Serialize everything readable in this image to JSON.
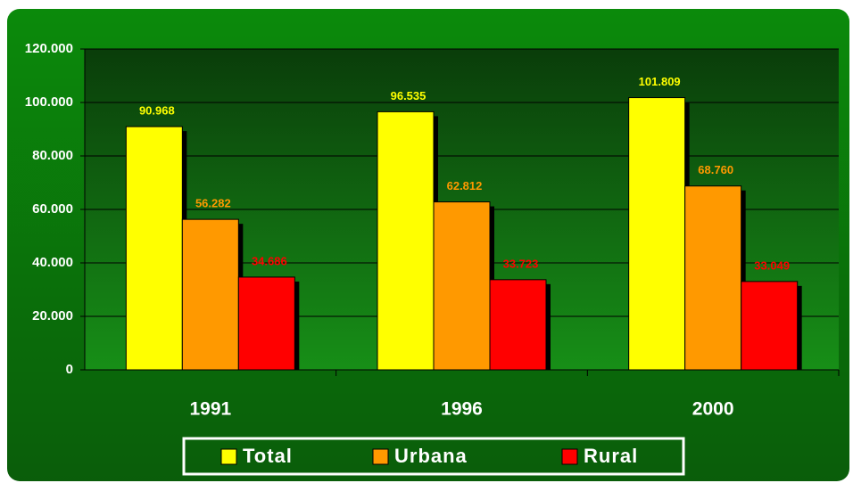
{
  "chart_data": {
    "type": "bar",
    "categories": [
      "1991",
      "1996",
      "2000"
    ],
    "series": [
      {
        "name": "Total",
        "color": "#ffff00",
        "values": [
          90968,
          96535,
          101809
        ],
        "value_labels": [
          "90.968",
          "96.535",
          "101.809"
        ]
      },
      {
        "name": "Urbana",
        "color": "#ff9900",
        "values": [
          56282,
          62812,
          68760
        ],
        "value_labels": [
          "56.282",
          "62.812",
          "68.760"
        ]
      },
      {
        "name": "Rural",
        "color": "#ff0000",
        "values": [
          34686,
          33723,
          33049
        ],
        "value_labels": [
          "34.686",
          "33.723",
          "33.049"
        ]
      }
    ],
    "ylim": [
      0,
      120000
    ],
    "yticks": [
      {
        "value": 0,
        "label": "0"
      },
      {
        "value": 20000,
        "label": "20.000"
      },
      {
        "value": 40000,
        "label": "40.000"
      },
      {
        "value": 60000,
        "label": "60.000"
      },
      {
        "value": 80000,
        "label": "80.000"
      },
      {
        "value": 100000,
        "label": "100.000"
      },
      {
        "value": 120000,
        "label": "120.000"
      }
    ],
    "grid": true,
    "legend": "bottom"
  }
}
